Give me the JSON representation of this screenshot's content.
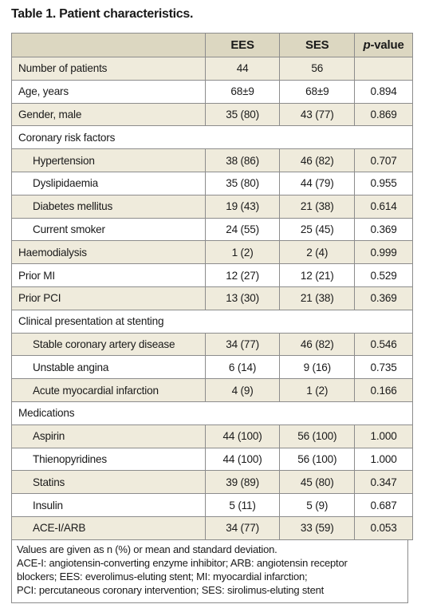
{
  "title": "Table 1. Patient characteristics.",
  "table": {
    "header": {
      "columns": [
        "EES",
        "SES"
      ],
      "p_column": {
        "italic": "p",
        "rest": "-value"
      }
    },
    "rows": [
      {
        "label": "Number of patients",
        "values": [
          "44",
          "56"
        ]
      },
      {
        "label": "Age, years",
        "values": [
          "68±9",
          "68±9",
          "0.894"
        ]
      },
      {
        "label": "Gender, male",
        "values": [
          "35 (80)",
          "43 (77)",
          "0.869"
        ]
      },
      {
        "label": "Coronary risk factors",
        "items": [
          {
            "label": "Hypertension",
            "values": [
              "38 (86)",
              "46 (82)",
              "0.707"
            ]
          },
          {
            "label": "Dyslipidaemia",
            "values": [
              "35 (80)",
              "44 (79)",
              "0.955"
            ]
          },
          {
            "label": "Diabetes mellitus",
            "values": [
              "19 (43)",
              "21 (38)",
              "0.614"
            ]
          },
          {
            "label": "Current smoker",
            "values": [
              "24 (55)",
              "25 (45)",
              "0.369"
            ]
          }
        ]
      },
      {
        "label": "Haemodialysis",
        "values": [
          "1 (2)",
          "2 (4)",
          "0.999"
        ]
      },
      {
        "label": "Prior MI",
        "values": [
          "12 (27)",
          "12 (21)",
          "0.529"
        ]
      },
      {
        "label": "Prior PCI",
        "values": [
          "13 (30)",
          "21 (38)",
          "0.369"
        ]
      },
      {
        "label": "Clinical presentation at stenting",
        "items": [
          {
            "label": "Stable coronary artery disease",
            "values": [
              "34 (77)",
              "46 (82)",
              "0.546"
            ]
          },
          {
            "label": "Unstable angina",
            "values": [
              "6 (14)",
              "9 (16)",
              "0.735"
            ]
          },
          {
            "label": "Acute myocardial infarction",
            "values": [
              "4 (9)",
              "1 (2)",
              "0.166"
            ]
          }
        ]
      },
      {
        "label": "Medications",
        "items": [
          {
            "label": "Aspirin",
            "values": [
              "44 (100)",
              "56 (100)",
              "1.000"
            ]
          },
          {
            "label": "Thienopyridines",
            "values": [
              "44 (100)",
              "56 (100)",
              "1.000"
            ]
          },
          {
            "label": "Statins",
            "values": [
              "39 (89)",
              "45 (80)",
              "0.347"
            ]
          },
          {
            "label": "Insulin",
            "values": [
              "5 (11)",
              "5 (9)",
              "0.687"
            ]
          },
          {
            "label": "ACE-I/ARB",
            "values": [
              "34 (77)",
              "33 (59)",
              "0.053"
            ]
          }
        ]
      }
    ]
  },
  "notes": [
    "Values are given as n (%) or mean and standard deviation.",
    "ACE-I: angiotensin-converting enzyme inhibitor; ARB: angiotensin receptor",
    "blockers; EES: everolimus-eluting stent; MI: myocardial infarction;",
    "PCI: percutaneous coronary intervention; SES: sirolimus-eluting stent"
  ]
}
